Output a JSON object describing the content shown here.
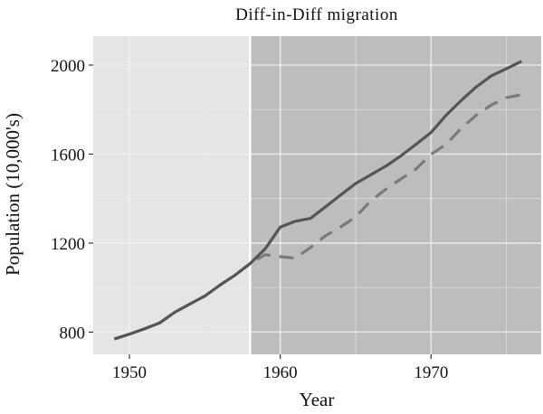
{
  "chart_data": {
    "type": "line",
    "title": "Diff-in-Diff migration",
    "xlabel": "Year",
    "ylabel": "Population (10,000's)",
    "xlim": [
      1947.6,
      1977.3
    ],
    "ylim": [
      700,
      2130
    ],
    "xticks": [
      1950,
      1960,
      1970
    ],
    "yticks": [
      800,
      1200,
      1600,
      2000
    ],
    "grid": true,
    "treatment_year": 1958,
    "colors": {
      "panel_pre": "#e5e5e5",
      "panel_post": "#bdbdbd",
      "solid": "#555555",
      "dashed": "#7a7a7a",
      "grid": "#f2f2f2"
    },
    "x": [
      1949,
      1950,
      1951,
      1952,
      1953,
      1954,
      1955,
      1956,
      1957,
      1958,
      1959,
      1960,
      1961,
      1962,
      1963,
      1964,
      1965,
      1966,
      1967,
      1968,
      1969,
      1970,
      1971,
      1972,
      1973,
      1974,
      1975,
      1976
    ],
    "series": [
      {
        "style": "solid",
        "values": [
          769,
          791,
          815,
          841,
          889,
          926,
          962,
          1011,
          1056,
          1108,
          1174,
          1272,
          1298,
          1311,
          1363,
          1416,
          1468,
          1507,
          1546,
          1592,
          1644,
          1697,
          1775,
          1841,
          1902,
          1952,
          1984,
          2017
        ]
      },
      {
        "style": "dashed",
        "values": [
          769,
          791,
          815,
          841,
          889,
          926,
          962,
          1011,
          1056,
          1108,
          1148,
          1139,
          1132,
          1180,
          1233,
          1272,
          1318,
          1390,
          1442,
          1488,
          1533,
          1599,
          1644,
          1716,
          1775,
          1821,
          1854,
          1867
        ]
      }
    ]
  }
}
